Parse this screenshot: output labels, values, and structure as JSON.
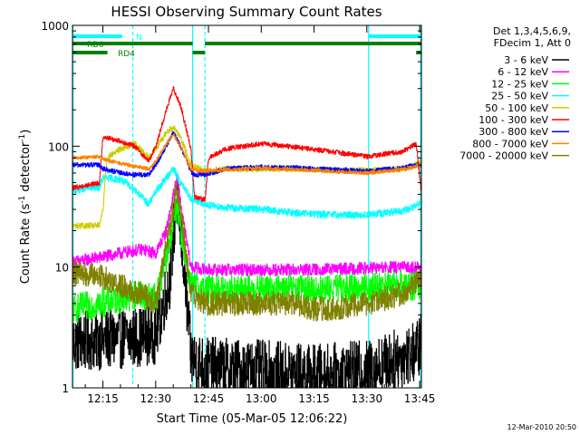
{
  "chart_data": {
    "type": "line",
    "title": "HESSI Observing Summary Count Rates",
    "xlabel": "Start Time (05-Mar-05 12:06:22)",
    "ylabel": "Count Rate (s",
    "ylabel_sup1": "-1",
    "ylabel_mid": " detector",
    "ylabel_sup2": "-1",
    "ylabel_end": ")",
    "xlim_min": [
      6.37,
      105.5
    ],
    "ylim": [
      1,
      1000
    ],
    "yscale": "log",
    "x_ticks": [
      {
        "label": "12:15",
        "v": 15
      },
      {
        "label": "12:30",
        "v": 30
      },
      {
        "label": "12:45",
        "v": 45
      },
      {
        "label": "13:00",
        "v": 60
      },
      {
        "label": "13:15",
        "v": 75
      },
      {
        "label": "13:30",
        "v": 90
      },
      {
        "label": "13:45",
        "v": 105
      }
    ],
    "y_ticks": [
      {
        "label": "1",
        "v": 1
      },
      {
        "label": "10",
        "v": 10
      },
      {
        "label": "100",
        "v": 100
      },
      {
        "label": "1000",
        "v": 1000
      }
    ],
    "legend": {
      "header1": "Det 1,3,4,5,6,9,",
      "header2": "FDecim 1, Att 0",
      "placement": "right"
    },
    "timestamp": "12-Mar-2010 20:50",
    "flags": [
      {
        "label": "N",
        "color": "#00ffff",
        "segments": [
          [
            6.4,
            20.5
          ],
          [
            90.5,
            105.5
          ]
        ]
      },
      {
        "label": "RD0",
        "color": "#008000",
        "segments": [
          [
            6.4,
            40.5
          ],
          [
            44,
            105.5
          ]
        ]
      },
      {
        "label": "RD4",
        "color": "#008000",
        "segments": [
          [
            6.4,
            16.3
          ],
          [
            40.5,
            44
          ],
          [
            104,
            105.5
          ]
        ]
      }
    ],
    "vlines": [
      {
        "t": 6.4,
        "style": "solid"
      },
      {
        "t": 40.5,
        "style": "solid"
      },
      {
        "t": 90.5,
        "style": "solid"
      },
      {
        "t": 105.3,
        "style": "solid"
      },
      {
        "t": 23.5,
        "style": "dashed"
      },
      {
        "t": 44,
        "style": "dashed"
      },
      {
        "t": 105.8,
        "style": "dashed"
      }
    ],
    "series": [
      {
        "name": "3 - 6 keV",
        "color": "#000000",
        "noise": 0.25,
        "points": [
          [
            6.4,
            2.4
          ],
          [
            15,
            2.5
          ],
          [
            23,
            2.6
          ],
          [
            30,
            2.8
          ],
          [
            34,
            8
          ],
          [
            36,
            40
          ],
          [
            38,
            10
          ],
          [
            40,
            1.8
          ],
          [
            44,
            1.5
          ],
          [
            60,
            1.4
          ],
          [
            75,
            1.3
          ],
          [
            90,
            1.4
          ],
          [
            104,
            2.0
          ],
          [
            105.5,
            2.5
          ]
        ]
      },
      {
        "name": "6 - 12 keV",
        "color": "#ff00ff",
        "noise": 0.05,
        "points": [
          [
            6.4,
            11
          ],
          [
            14,
            12
          ],
          [
            20,
            13
          ],
          [
            26,
            14
          ],
          [
            30,
            13
          ],
          [
            33,
            20
          ],
          [
            36,
            55
          ],
          [
            38,
            22
          ],
          [
            40,
            10
          ],
          [
            44,
            9.5
          ],
          [
            60,
            9.5
          ],
          [
            75,
            9.5
          ],
          [
            90,
            9.8
          ],
          [
            105.5,
            10
          ]
        ]
      },
      {
        "name": "12 - 25 keV",
        "color": "#00ff00",
        "noise": 0.12,
        "points": [
          [
            6.4,
            4.5
          ],
          [
            14,
            5
          ],
          [
            20,
            5.5
          ],
          [
            26,
            6
          ],
          [
            30,
            5.5
          ],
          [
            33,
            12
          ],
          [
            36,
            32
          ],
          [
            38,
            14
          ],
          [
            40,
            7
          ],
          [
            44,
            6.5
          ],
          [
            60,
            6.5
          ],
          [
            75,
            6.5
          ],
          [
            90,
            6.8
          ],
          [
            105.5,
            7
          ]
        ]
      },
      {
        "name": "25 - 50 keV",
        "color": "#00ffff",
        "noise": 0.03,
        "points": [
          [
            6.4,
            42
          ],
          [
            10,
            45
          ],
          [
            14,
            46
          ],
          [
            15,
            55
          ],
          [
            20,
            53
          ],
          [
            24,
            44
          ],
          [
            28,
            33
          ],
          [
            30,
            42
          ],
          [
            33,
            55
          ],
          [
            35,
            65
          ],
          [
            37,
            50
          ],
          [
            40,
            37
          ],
          [
            44,
            33
          ],
          [
            50,
            31
          ],
          [
            60,
            30
          ],
          [
            70,
            28
          ],
          [
            80,
            27
          ],
          [
            90,
            27
          ],
          [
            100,
            29
          ],
          [
            104,
            32
          ],
          [
            105.5,
            35
          ]
        ]
      },
      {
        "name": "50 - 100 keV",
        "color": "#cccc00",
        "noise": 0.025,
        "points": [
          [
            6.4,
            22
          ],
          [
            14,
            22
          ],
          [
            15,
            30
          ],
          [
            16,
            80
          ],
          [
            20,
            95
          ],
          [
            24,
            105
          ],
          [
            28,
            80
          ],
          [
            30,
            95
          ],
          [
            33,
            130
          ],
          [
            35,
            145
          ],
          [
            37,
            120
          ],
          [
            40,
            70
          ],
          [
            44,
            62
          ],
          [
            50,
            65
          ],
          [
            60,
            65
          ],
          [
            70,
            65
          ],
          [
            80,
            63
          ],
          [
            90,
            63
          ],
          [
            100,
            65
          ],
          [
            104,
            70
          ],
          [
            105.5,
            75
          ]
        ]
      },
      {
        "name": "100 - 300 keV",
        "color": "#ff0000",
        "noise": 0.02,
        "points": [
          [
            6.4,
            45
          ],
          [
            14,
            50
          ],
          [
            15,
            120
          ],
          [
            20,
            110
          ],
          [
            24,
            100
          ],
          [
            28,
            75
          ],
          [
            30,
            100
          ],
          [
            33,
            200
          ],
          [
            35,
            300
          ],
          [
            37,
            220
          ],
          [
            40,
            95
          ],
          [
            41,
            38
          ],
          [
            44,
            36
          ],
          [
            45,
            80
          ],
          [
            50,
            95
          ],
          [
            60,
            105
          ],
          [
            70,
            98
          ],
          [
            80,
            90
          ],
          [
            90,
            82
          ],
          [
            100,
            90
          ],
          [
            104,
            105
          ],
          [
            105.5,
            40
          ]
        ]
      },
      {
        "name": "300 - 800 keV",
        "color": "#0000ff",
        "noise": 0.02,
        "points": [
          [
            6.4,
            70
          ],
          [
            14,
            70
          ],
          [
            15,
            65
          ],
          [
            20,
            60
          ],
          [
            24,
            58
          ],
          [
            28,
            58
          ],
          [
            30,
            70
          ],
          [
            33,
            100
          ],
          [
            35,
            130
          ],
          [
            37,
            100
          ],
          [
            40,
            62
          ],
          [
            41,
            58
          ],
          [
            44,
            58
          ],
          [
            50,
            65
          ],
          [
            60,
            67
          ],
          [
            70,
            66
          ],
          [
            80,
            64
          ],
          [
            90,
            62
          ],
          [
            100,
            66
          ],
          [
            104,
            70
          ],
          [
            105.5,
            70
          ]
        ]
      },
      {
        "name": "800 - 7000 keV",
        "color": "#ff8000",
        "noise": 0.015,
        "points": [
          [
            6.4,
            80
          ],
          [
            14,
            82
          ],
          [
            15,
            78
          ],
          [
            20,
            72
          ],
          [
            24,
            68
          ],
          [
            28,
            65
          ],
          [
            30,
            75
          ],
          [
            33,
            105
          ],
          [
            35,
            125
          ],
          [
            37,
            100
          ],
          [
            40,
            64
          ],
          [
            44,
            62
          ],
          [
            50,
            64
          ],
          [
            60,
            66
          ],
          [
            70,
            64
          ],
          [
            80,
            62
          ],
          [
            90,
            60
          ],
          [
            100,
            64
          ],
          [
            104,
            68
          ],
          [
            105.5,
            72
          ]
        ]
      },
      {
        "name": "7000 - 20000 keV",
        "color": "#808000",
        "noise": 0.1,
        "points": [
          [
            6.4,
            9
          ],
          [
            14,
            8.5
          ],
          [
            20,
            7
          ],
          [
            26,
            6
          ],
          [
            30,
            5
          ],
          [
            33,
            15
          ],
          [
            36,
            45
          ],
          [
            38,
            18
          ],
          [
            40,
            6
          ],
          [
            44,
            5
          ],
          [
            60,
            5
          ],
          [
            70,
            5
          ],
          [
            75,
            4.5
          ],
          [
            80,
            4.5
          ],
          [
            90,
            5
          ],
          [
            100,
            6
          ],
          [
            105.5,
            8
          ]
        ]
      }
    ]
  }
}
